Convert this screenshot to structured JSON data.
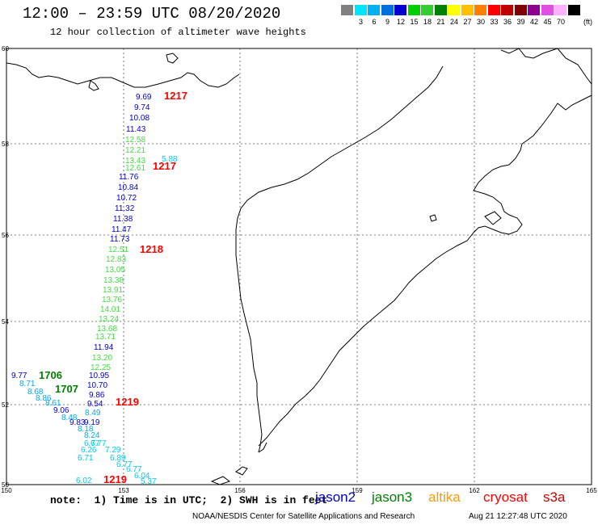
{
  "title": "12:00 – 23:59 UTC 08/20/2020",
  "subtitle": "12 hour collection of altimeter wave heights",
  "color_scale": {
    "unit": "(ft)",
    "bins": [
      {
        "label": "",
        "color": "#808080"
      },
      {
        "label": "3",
        "color": "#00e5ff"
      },
      {
        "label": "6",
        "color": "#00b0f0"
      },
      {
        "label": "9",
        "color": "#0070e0"
      },
      {
        "label": "12",
        "color": "#0000d0"
      },
      {
        "label": "15",
        "color": "#00d000"
      },
      {
        "label": "18",
        "color": "#33cc33"
      },
      {
        "label": "21",
        "color": "#008000"
      },
      {
        "label": "24",
        "color": "#ffff00"
      },
      {
        "label": "27",
        "color": "#ffc000"
      },
      {
        "label": "30",
        "color": "#ff8000"
      },
      {
        "label": "33",
        "color": "#ff0000"
      },
      {
        "label": "36",
        "color": "#c00000"
      },
      {
        "label": "39",
        "color": "#800000"
      },
      {
        "label": "42",
        "color": "#900090"
      },
      {
        "label": "45",
        "color": "#e050e0"
      },
      {
        "label": "70",
        "color": "#ffb0ff"
      },
      {
        "label": "",
        "color": "#000000"
      }
    ]
  },
  "axes": {
    "lon_ticks": [
      "150",
      "153",
      "156",
      "159",
      "162",
      "165"
    ],
    "lat_ticks": [
      "50",
      "52",
      "54",
      "56",
      "58",
      "60"
    ]
  },
  "track_times": [
    {
      "text": "1217",
      "color": "#ff0000"
    },
    {
      "text": "1217",
      "color": "#ff0000"
    },
    {
      "text": "1218",
      "color": "#ff0000"
    },
    {
      "text": "1219",
      "color": "#ff0000"
    },
    {
      "text": "1219",
      "color": "#ff0000"
    },
    {
      "text": "1706",
      "color": "#008000"
    },
    {
      "text": "1707",
      "color": "#008000"
    }
  ],
  "wave_heights": [
    {
      "v": "9.69",
      "c": "#0000cc"
    },
    {
      "v": "9.74",
      "c": "#0000cc"
    },
    {
      "v": "10.08",
      "c": "#0000cc"
    },
    {
      "v": "11.43",
      "c": "#0000cc"
    },
    {
      "v": "12.58",
      "c": "#44dd44"
    },
    {
      "v": "12.21",
      "c": "#44dd44"
    },
    {
      "v": "13.43",
      "c": "#44dd44"
    },
    {
      "v": "12.61",
      "c": "#44dd44"
    },
    {
      "v": "11.76",
      "c": "#0000cc"
    },
    {
      "v": "10.84",
      "c": "#0000cc"
    },
    {
      "v": "10.72",
      "c": "#0000cc"
    },
    {
      "v": "11.32",
      "c": "#0000cc"
    },
    {
      "v": "11.38",
      "c": "#0000cc"
    },
    {
      "v": "11.47",
      "c": "#0000cc"
    },
    {
      "v": "11.73",
      "c": "#0000cc"
    },
    {
      "v": "12.51",
      "c": "#44dd44"
    },
    {
      "v": "12.83",
      "c": "#44dd44"
    },
    {
      "v": "13.05",
      "c": "#44dd44"
    },
    {
      "v": "13.38",
      "c": "#44dd44"
    },
    {
      "v": "13.91",
      "c": "#44dd44"
    },
    {
      "v": "13.76",
      "c": "#44dd44"
    },
    {
      "v": "14.01",
      "c": "#44dd44"
    },
    {
      "v": "13.24",
      "c": "#44dd44"
    },
    {
      "v": "13.68",
      "c": "#44dd44"
    },
    {
      "v": "13.71",
      "c": "#44dd44"
    },
    {
      "v": "11.94",
      "c": "#0000cc"
    },
    {
      "v": "13.20",
      "c": "#44dd44"
    },
    {
      "v": "12.25",
      "c": "#44dd44"
    },
    {
      "v": "10.95",
      "c": "#0000cc"
    },
    {
      "v": "10.70",
      "c": "#0000cc"
    },
    {
      "v": "9.86",
      "c": "#0000cc"
    },
    {
      "v": "9.54",
      "c": "#0000cc"
    },
    {
      "v": "8.49",
      "c": "#00aaee"
    },
    {
      "v": "9.19",
      "c": "#0000cc"
    },
    {
      "v": "9.77",
      "c": "#0000cc"
    },
    {
      "v": "8.71",
      "c": "#00aaee"
    },
    {
      "v": "8.68",
      "c": "#00aaee"
    },
    {
      "v": "8.86",
      "c": "#00aaee"
    },
    {
      "v": "8.61",
      "c": "#00aaee"
    },
    {
      "v": "9.06",
      "c": "#0000cc"
    },
    {
      "v": "8.48",
      "c": "#00aaee"
    },
    {
      "v": "9.83",
      "c": "#0000cc"
    },
    {
      "v": "8.18",
      "c": "#00aaee"
    },
    {
      "v": "8.24",
      "c": "#00aaee"
    },
    {
      "v": "6.77",
      "c": "#00ccee"
    },
    {
      "v": "6.77",
      "c": "#00ccee"
    },
    {
      "v": "6.26",
      "c": "#00ccee"
    },
    {
      "v": "7.29",
      "c": "#00ccee"
    },
    {
      "v": "6.71",
      "c": "#00ccee"
    },
    {
      "v": "6.89",
      "c": "#00ccee"
    },
    {
      "v": "6.77",
      "c": "#00ccee"
    },
    {
      "v": "6.77",
      "c": "#00ccee"
    },
    {
      "v": "6.04",
      "c": "#00ccee"
    },
    {
      "v": "6.02",
      "c": "#00ccee"
    },
    {
      "v": "5.37",
      "c": "#00ccee"
    },
    {
      "v": "5.88",
      "c": "#00ccee"
    }
  ],
  "footer": {
    "note": "note:  1) Time is in UTC;  2) SWH is in feet",
    "satellites": [
      {
        "name": "jason2",
        "color": "#0000cc"
      },
      {
        "name": "jason3",
        "color": "#008000"
      },
      {
        "name": "altika",
        "color": "#ff9900"
      },
      {
        "name": "cryosat",
        "color": "#ff0000"
      },
      {
        "name": "s3a",
        "color": "#cc0000"
      }
    ],
    "credit": "NOAA/NESDIS Center for Satellite Applications and Research",
    "timestamp": "Aug 21 12:27:48 UTC 2020"
  }
}
